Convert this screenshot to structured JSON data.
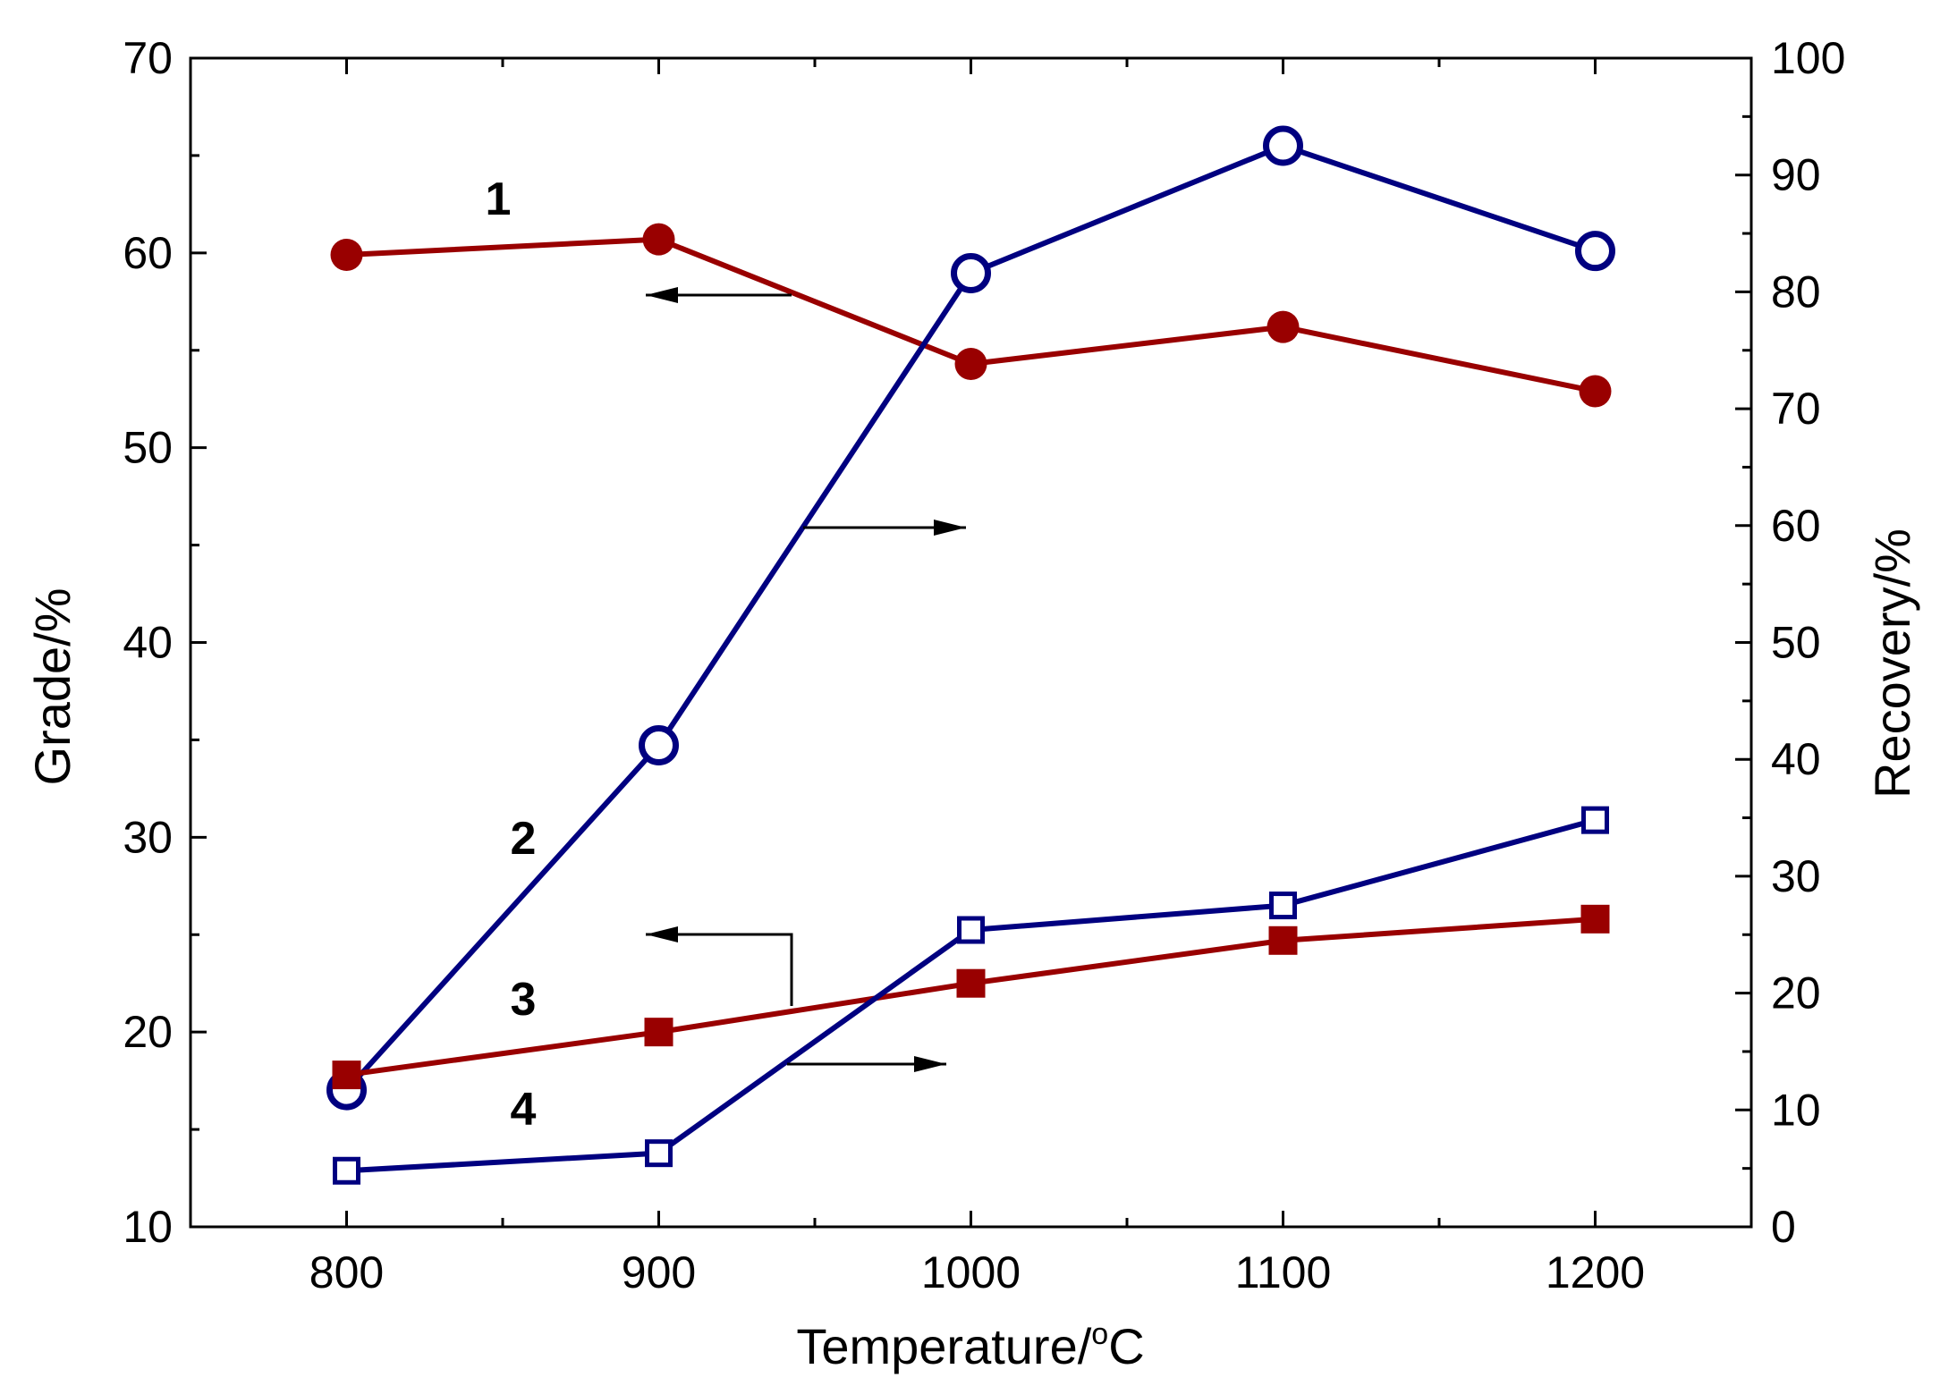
{
  "chart_data": {
    "type": "line",
    "x": [
      800,
      900,
      1000,
      1100,
      1200
    ],
    "xlabel": "Temperature/",
    "xlabel_sup": "o",
    "xlabel_suffix": "C",
    "ylabel_left": "Grade/%",
    "ylabel_right": "Recovery/%",
    "xlim": [
      750,
      1250
    ],
    "ylim_left": [
      10,
      70
    ],
    "ylim_right": [
      0,
      100
    ],
    "x_ticks": [
      800,
      900,
      1000,
      1100,
      1200
    ],
    "x_tick_labels": [
      "800",
      "900",
      "1000",
      "1100",
      "1200"
    ],
    "y_left_ticks": [
      10,
      20,
      30,
      40,
      50,
      60,
      70
    ],
    "y_left_tick_labels": [
      "10",
      "20",
      "30",
      "40",
      "50",
      "60",
      "70"
    ],
    "y_right_ticks": [
      0,
      10,
      20,
      30,
      40,
      50,
      60,
      70,
      80,
      90,
      100
    ],
    "y_right_tick_labels": [
      "0",
      "10",
      "20",
      "30",
      "40",
      "50",
      "60",
      "70",
      "80",
      "90",
      "100"
    ],
    "series": [
      {
        "name": "1",
        "axis": "left",
        "marker": "filled-circle",
        "color": "#990000",
        "values": [
          59.9,
          60.7,
          54.3,
          56.2,
          52.9
        ]
      },
      {
        "name": "2",
        "axis": "right",
        "marker": "open-circle",
        "color": "#000080",
        "values": [
          11.7,
          41.2,
          81.6,
          92.5,
          83.5
        ]
      },
      {
        "name": "3",
        "axis": "left",
        "marker": "filled-square",
        "color": "#990000",
        "values": [
          17.8,
          20.0,
          22.5,
          24.7,
          25.8
        ]
      },
      {
        "name": "4",
        "axis": "right",
        "marker": "open-square",
        "color": "#000080",
        "values": [
          4.8,
          6.3,
          25.4,
          27.5,
          34.8
        ]
      }
    ],
    "annotations": [
      {
        "series": "1",
        "label": "1",
        "points_to": "left"
      },
      {
        "series": "2",
        "label": "2",
        "points_to": "right"
      },
      {
        "series": "3",
        "label": "3",
        "points_to": "left"
      },
      {
        "series": "4",
        "label": "4",
        "points_to": "right"
      }
    ]
  }
}
